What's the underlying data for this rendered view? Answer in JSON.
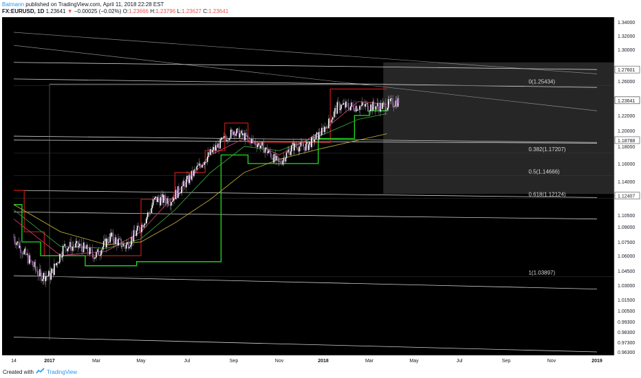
{
  "header": {
    "author": "Batmann",
    "published_text": "published on TradingView.com, April 11, 2018 22:28 EST",
    "symbol": "FX:EURUSD, 1D",
    "last_price": "1.23641",
    "change": "−0.00025 (−0.02%)",
    "ohlc": {
      "o_label": "O:",
      "o": "1.23666",
      "h_label": "H:",
      "h": "1.23796",
      "l_label": "L:",
      "l": "1.23627",
      "c_label": "C:",
      "c": "1.23641"
    }
  },
  "footer": {
    "created_with": "Created with",
    "brand": "TradingView"
  },
  "chart_data": {
    "type": "line",
    "title": "",
    "xlabel": "",
    "ylabel": "",
    "ylim": [
      0.951,
      1.348
    ],
    "x_tick_labels": [
      "14",
      "2017",
      "Mar",
      "May",
      "Jul",
      "Sep",
      "Nov",
      "2018",
      "Mar",
      "May",
      "Jul",
      "Sep",
      "Nov",
      "2019"
    ],
    "y_tick_labels": [
      "0.96300",
      "0.97300",
      "0.98300",
      "0.99300",
      "1.00500",
      "1.01500",
      "1.03000",
      "1.04500",
      "1.06000",
      "1.07500",
      "1.09000",
      "1.10500",
      "1.12407",
      "1.14000",
      "1.16000",
      "1.18000",
      "1.18788",
      "1.20000",
      "1.22000",
      "1.23641",
      "1.26000",
      "1.27601",
      "1.30000",
      "1.32000",
      "1.34000"
    ],
    "price_badges": [
      "1.27601",
      "1.23641",
      "1.18788",
      "1.12407"
    ],
    "fib_labels": [
      {
        "label": "0(1.25434)",
        "value": 1.25434
      },
      {
        "label": "0.382(1.17207)",
        "value": 1.17207
      },
      {
        "label": "0.5(1.14666)",
        "value": 1.14666
      },
      {
        "label": "0.618(1.12124)",
        "value": 1.12124
      },
      {
        "label": "1(1.03897)",
        "value": 1.03897
      }
    ],
    "series": [
      {
        "values_desc": "EURUSD daily close (approx)",
        "x": [
          "2016-11-14",
          "2016-12-01",
          "2016-12-20",
          "2017-01-03",
          "2017-01-20",
          "2017-02-10",
          "2017-03-01",
          "2017-03-20",
          "2017-04-10",
          "2017-05-01",
          "2017-05-20",
          "2017-06-10",
          "2017-07-01",
          "2017-07-20",
          "2017-08-10",
          "2017-09-01",
          "2017-09-20",
          "2017-10-10",
          "2017-11-01",
          "2017-11-20",
          "2017-12-10",
          "2018-01-01",
          "2018-01-20",
          "2018-02-10",
          "2018-03-01",
          "2018-03-20",
          "2018-04-11"
        ],
        "values": [
          1.08,
          1.06,
          1.04,
          1.04,
          1.07,
          1.07,
          1.06,
          1.08,
          1.07,
          1.09,
          1.12,
          1.12,
          1.14,
          1.16,
          1.18,
          1.2,
          1.19,
          1.18,
          1.16,
          1.18,
          1.18,
          1.2,
          1.23,
          1.23,
          1.23,
          1.23,
          1.236
        ]
      }
    ]
  },
  "colors": {
    "background": "#000000",
    "grid_line": "#d9d9d9",
    "step_green": "#22e022",
    "step_red": "#c41a1a",
    "ema_fast": "#d23c6a",
    "ema_mid": "#3aa03a",
    "ema_slow": "#b8a638",
    "shaded_box": "#262626",
    "author_blue": "#2196f3"
  }
}
